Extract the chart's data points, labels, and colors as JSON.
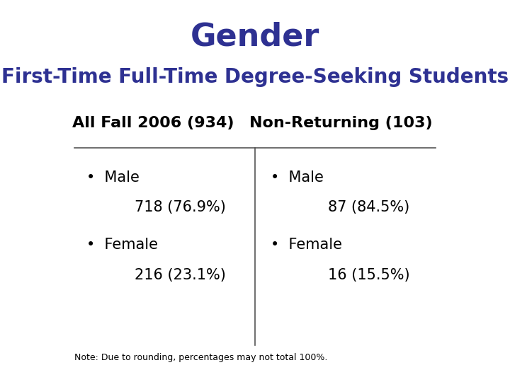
{
  "title": "Gender",
  "subtitle": "First-Time Full-Time Degree-Seeking Students",
  "title_color": "#2E3192",
  "subtitle_color": "#2E3192",
  "col1_header": "All Fall 2006 (934)",
  "col2_header": "Non-Returning (103)",
  "col1_items": [
    {
      "label": "Male",
      "value": "718 (76.9%)"
    },
    {
      "label": "Female",
      "value": "216 (23.1%)"
    }
  ],
  "col2_items": [
    {
      "label": "Male",
      "value": "87 (84.5%)"
    },
    {
      "label": "Female",
      "value": "16 (15.5%)"
    }
  ],
  "note": "Note: Due to rounding, percentages may not total 100%.",
  "bg_color": "#ffffff",
  "text_color": "#000000",
  "header_color": "#000000",
  "divider_color": "#555555",
  "title_fontsize": 32,
  "subtitle_fontsize": 20,
  "header_fontsize": 16,
  "item_fontsize": 15,
  "note_fontsize": 9
}
